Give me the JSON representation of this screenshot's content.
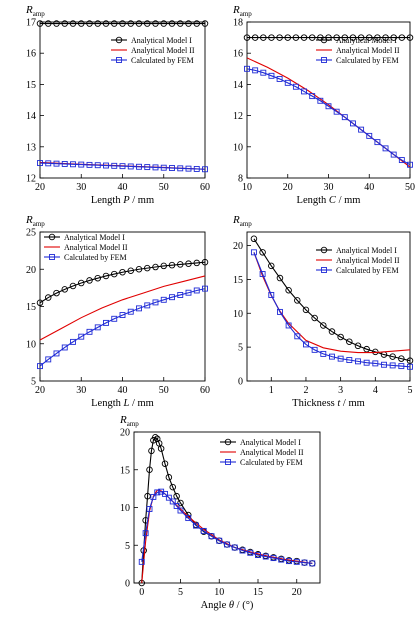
{
  "chart_data": [
    {
      "type": "line",
      "ylabel_main": "R",
      "ylabel_sub": "amp",
      "xlabel_pre": "Length ",
      "xlabel_var": "P",
      "xlabel_post": " / mm",
      "xlim": [
        20,
        60
      ],
      "ylim": [
        12,
        17
      ],
      "xticks": [
        20,
        30,
        40,
        50,
        60
      ],
      "yticks": [
        12,
        13,
        14,
        15,
        16,
        17
      ],
      "legend": "top-right",
      "series": [
        {
          "name": "Analytical Model I",
          "color": "#000000",
          "marker": "circle",
          "x": [
            20,
            22,
            24,
            26,
            28,
            30,
            32,
            34,
            36,
            38,
            40,
            42,
            44,
            46,
            48,
            50,
            52,
            54,
            56,
            58,
            60
          ],
          "y": [
            16.95,
            16.95,
            16.95,
            16.95,
            16.95,
            16.95,
            16.95,
            16.95,
            16.95,
            16.95,
            16.95,
            16.95,
            16.95,
            16.95,
            16.95,
            16.95,
            16.95,
            16.95,
            16.95,
            16.95,
            16.95
          ]
        },
        {
          "name": "Analytical Model II",
          "color": "#e00000",
          "marker": "none",
          "x": [
            20,
            30,
            40,
            50,
            60
          ],
          "y": [
            12.5,
            12.44,
            12.39,
            12.34,
            12.28
          ]
        },
        {
          "name": "Calculated by FEM",
          "color": "#1f2bd6",
          "marker": "square",
          "x": [
            20,
            22,
            24,
            26,
            28,
            30,
            32,
            34,
            36,
            38,
            40,
            42,
            44,
            46,
            48,
            50,
            52,
            54,
            56,
            58,
            60
          ],
          "y": [
            12.48,
            12.47,
            12.46,
            12.45,
            12.44,
            12.43,
            12.42,
            12.41,
            12.4,
            12.39,
            12.38,
            12.37,
            12.36,
            12.35,
            12.34,
            12.33,
            12.32,
            12.31,
            12.3,
            12.29,
            12.28
          ]
        }
      ]
    },
    {
      "type": "line",
      "ylabel_main": "R",
      "ylabel_sub": "amp",
      "xlabel_pre": "Length ",
      "xlabel_var": "C",
      "xlabel_post": " / mm",
      "xlim": [
        10,
        50
      ],
      "ylim": [
        8,
        18
      ],
      "xticks": [
        10,
        20,
        30,
        40,
        50
      ],
      "yticks": [
        8,
        10,
        12,
        14,
        16,
        18
      ],
      "legend": "top-right",
      "series": [
        {
          "name": "Analytical Model I",
          "color": "#000000",
          "marker": "circle",
          "x": [
            10,
            12,
            14,
            16,
            18,
            20,
            22,
            24,
            26,
            28,
            30,
            32,
            34,
            36,
            38,
            40,
            42,
            44,
            46,
            48,
            50
          ],
          "y": [
            17,
            17,
            17,
            17,
            17,
            17,
            17,
            17,
            17,
            17,
            17,
            17,
            17,
            17,
            17,
            17,
            17,
            17,
            17,
            17,
            17
          ]
        },
        {
          "name": "Analytical Model II",
          "color": "#e00000",
          "marker": "none",
          "x": [
            10,
            15,
            20,
            25,
            30,
            35,
            40,
            45,
            50
          ],
          "y": [
            15.7,
            15.1,
            14.4,
            13.6,
            12.7,
            11.7,
            10.7,
            9.7,
            8.7
          ]
        },
        {
          "name": "Calculated by FEM",
          "color": "#1f2bd6",
          "marker": "square",
          "x": [
            10,
            12,
            14,
            16,
            18,
            20,
            22,
            24,
            26,
            28,
            30,
            32,
            34,
            36,
            38,
            40,
            42,
            44,
            46,
            48,
            50
          ],
          "y": [
            15.0,
            14.9,
            14.75,
            14.55,
            14.35,
            14.1,
            13.85,
            13.55,
            13.25,
            12.95,
            12.6,
            12.25,
            11.9,
            11.5,
            11.1,
            10.7,
            10.3,
            9.9,
            9.5,
            9.15,
            8.85
          ]
        }
      ]
    },
    {
      "type": "line",
      "ylabel_main": "R",
      "ylabel_sub": "amp",
      "xlabel_pre": "Length ",
      "xlabel_var": "L",
      "xlabel_post": " / mm",
      "xlim": [
        20,
        60
      ],
      "ylim": [
        5,
        25
      ],
      "xticks": [
        20,
        30,
        40,
        50,
        60
      ],
      "yticks": [
        5,
        10,
        15,
        20,
        25
      ],
      "legend": "top-left",
      "series": [
        {
          "name": "Analytical Model I",
          "color": "#000000",
          "marker": "circle",
          "x": [
            20,
            22,
            24,
            26,
            28,
            30,
            32,
            34,
            36,
            38,
            40,
            42,
            44,
            46,
            48,
            50,
            52,
            54,
            56,
            58,
            60
          ],
          "y": [
            15.5,
            16.2,
            16.8,
            17.3,
            17.75,
            18.15,
            18.5,
            18.8,
            19.1,
            19.35,
            19.6,
            19.8,
            20.0,
            20.15,
            20.3,
            20.45,
            20.55,
            20.65,
            20.75,
            20.85,
            20.95
          ]
        },
        {
          "name": "Analytical Model II",
          "color": "#e00000",
          "marker": "none",
          "x": [
            20,
            25,
            30,
            35,
            40,
            45,
            50,
            55,
            60
          ],
          "y": [
            10.5,
            12.0,
            13.5,
            14.8,
            15.9,
            16.8,
            17.7,
            18.4,
            19.1
          ]
        },
        {
          "name": "Calculated by FEM",
          "color": "#1f2bd6",
          "marker": "square",
          "x": [
            20,
            22,
            24,
            26,
            28,
            30,
            32,
            34,
            36,
            38,
            40,
            42,
            44,
            46,
            48,
            50,
            52,
            54,
            56,
            58,
            60
          ],
          "y": [
            7.0,
            7.9,
            8.7,
            9.5,
            10.25,
            10.95,
            11.6,
            12.2,
            12.8,
            13.35,
            13.85,
            14.3,
            14.75,
            15.15,
            15.55,
            15.9,
            16.25,
            16.55,
            16.85,
            17.15,
            17.4
          ]
        }
      ]
    },
    {
      "type": "line",
      "ylabel_main": "R",
      "ylabel_sub": "amp",
      "xlabel_pre": "Thickness ",
      "xlabel_var": "t",
      "xlabel_post": " / mm",
      "xlim": [
        0.3,
        5
      ],
      "ylim": [
        0,
        22
      ],
      "xticks": [
        1,
        2,
        3,
        4,
        5
      ],
      "yticks": [
        0,
        5,
        10,
        15,
        20
      ],
      "legend": "top-right",
      "series": [
        {
          "name": "Analytical Model I",
          "color": "#000000",
          "marker": "circle",
          "x": [
            0.5,
            0.75,
            1.0,
            1.25,
            1.5,
            1.75,
            2.0,
            2.25,
            2.5,
            2.75,
            3.0,
            3.25,
            3.5,
            3.75,
            4.0,
            4.25,
            4.5,
            4.75,
            5.0
          ],
          "y": [
            21.0,
            19.0,
            17.0,
            15.2,
            13.4,
            11.9,
            10.5,
            9.3,
            8.2,
            7.3,
            6.5,
            5.8,
            5.2,
            4.7,
            4.3,
            3.9,
            3.6,
            3.3,
            3.0
          ]
        },
        {
          "name": "Analytical Model II",
          "color": "#e00000",
          "marker": "none",
          "x": [
            0.5,
            0.75,
            1.0,
            1.25,
            1.5,
            2.0,
            2.5,
            3.0,
            3.5,
            4.0,
            4.5,
            5.0
          ],
          "y": [
            19.0,
            15.5,
            12.6,
            10.3,
            8.5,
            6.0,
            4.9,
            4.4,
            4.2,
            4.2,
            4.4,
            4.6
          ]
        },
        {
          "name": "Calculated by FEM",
          "color": "#1f2bd6",
          "marker": "square",
          "x": [
            0.5,
            0.75,
            1.0,
            1.25,
            1.5,
            1.75,
            2.0,
            2.25,
            2.5,
            2.75,
            3.0,
            3.25,
            3.5,
            3.75,
            4.0,
            4.25,
            4.5,
            4.75,
            5.0
          ],
          "y": [
            19.0,
            15.8,
            12.7,
            10.2,
            8.2,
            6.6,
            5.4,
            4.6,
            4.0,
            3.6,
            3.3,
            3.1,
            2.9,
            2.7,
            2.6,
            2.4,
            2.3,
            2.2,
            2.1
          ]
        }
      ]
    },
    {
      "type": "line",
      "ylabel_main": "R",
      "ylabel_sub": "amp",
      "xlabel_pre": "Angle ",
      "xlabel_var": "θ",
      "xlabel_post": " / (°)",
      "xlim": [
        -1,
        23
      ],
      "ylim": [
        0,
        20
      ],
      "xticks": [
        0,
        5,
        10,
        15,
        20
      ],
      "yticks": [
        0,
        5,
        10,
        15,
        20
      ],
      "legend": "top-right",
      "series": [
        {
          "name": "Analytical Model I",
          "color": "#000000",
          "marker": "circle",
          "x": [
            0,
            0.25,
            0.5,
            0.75,
            1.0,
            1.25,
            1.5,
            1.75,
            2.0,
            2.25,
            2.5,
            3.0,
            3.5,
            4.0,
            4.5,
            5.0,
            6.0,
            7.0,
            8.0,
            9.0,
            10.0,
            11.0,
            12.0,
            13.0,
            14.0,
            15.0,
            16.0,
            17.0,
            18.0,
            19.0,
            20.0,
            21.0,
            22.0
          ],
          "y": [
            0,
            4.3,
            8.3,
            11.5,
            15.0,
            17.5,
            18.9,
            19.3,
            19.1,
            18.5,
            17.8,
            15.8,
            14.0,
            12.7,
            11.5,
            10.6,
            9.0,
            7.7,
            6.8,
            6.2,
            5.6,
            5.1,
            4.7,
            4.4,
            4.1,
            3.8,
            3.6,
            3.4,
            3.2,
            3.0,
            2.9,
            2.7,
            2.6
          ]
        },
        {
          "name": "Analytical Model II",
          "color": "#e00000",
          "marker": "none",
          "x": [
            0,
            0.5,
            1.0,
            1.5,
            2.0,
            2.5,
            3.0,
            4.0,
            5.0,
            6.0,
            8.0,
            10.0,
            12.0,
            14.0,
            16.0,
            18.0,
            20.0,
            22.0
          ],
          "y": [
            0,
            5.5,
            9.5,
            11.5,
            12.3,
            12.2,
            11.8,
            10.8,
            9.8,
            8.8,
            7.1,
            5.7,
            4.7,
            4.1,
            3.6,
            3.2,
            2.9,
            2.6
          ]
        },
        {
          "name": "Calculated by FEM",
          "color": "#1f2bd6",
          "marker": "square",
          "x": [
            0,
            0.5,
            1.0,
            1.5,
            2.0,
            2.5,
            3.0,
            3.5,
            4.0,
            4.5,
            5.0,
            6.0,
            7.0,
            8.0,
            9.0,
            10.0,
            11.0,
            12.0,
            13.0,
            14.0,
            15.0,
            16.0,
            17.0,
            18.0,
            19.0,
            20.0,
            21.0,
            22.0
          ],
          "y": [
            2.8,
            6.6,
            9.8,
            11.4,
            12.0,
            12.1,
            11.8,
            11.3,
            10.8,
            10.2,
            9.6,
            8.6,
            7.6,
            6.9,
            6.2,
            5.6,
            5.1,
            4.7,
            4.3,
            4.0,
            3.7,
            3.5,
            3.3,
            3.1,
            2.9,
            2.8,
            2.7,
            2.6
          ]
        }
      ]
    }
  ]
}
